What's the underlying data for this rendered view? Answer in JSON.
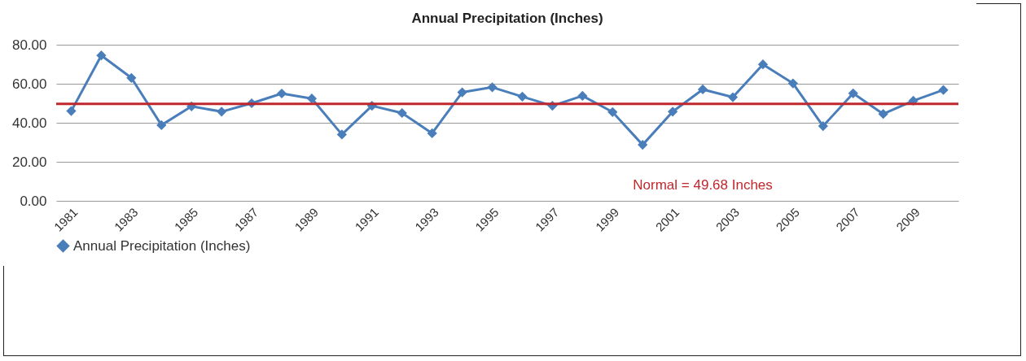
{
  "chart_data": {
    "type": "line",
    "title": "Annual Precipitation (Inches)",
    "categories": [
      "1981",
      null,
      "1983",
      null,
      "1985",
      null,
      "1987",
      null,
      "1989",
      null,
      "1991",
      null,
      "1993",
      null,
      "1995",
      null,
      "1997",
      null,
      "1999",
      null,
      "2001",
      null,
      "2003",
      null,
      "2005",
      null,
      "2007",
      null,
      "2009",
      null
    ],
    "series": [
      {
        "name": "Annual Precipitation (Inches)",
        "color": "#4a7ebb",
        "values": [
          46,
          74.5,
          63,
          38.8,
          48.4,
          45.7,
          50,
          55,
          52.4,
          34,
          48.7,
          45,
          34.6,
          55.6,
          58.2,
          53.4,
          48.7,
          53.8,
          45.5,
          28.7,
          45.7,
          57.1,
          53.1,
          69.9,
          60.2,
          38.3,
          55.1,
          44.5,
          51.3,
          56.8
        ]
      }
    ],
    "ylim": [
      0,
      80
    ],
    "yticks": [
      {
        "value": 0,
        "label": "0.00"
      },
      {
        "value": 20,
        "label": "20.00"
      },
      {
        "value": 40,
        "label": "40.00"
      },
      {
        "value": 60,
        "label": "60.00"
      },
      {
        "value": 80,
        "label": "80.00"
      }
    ],
    "ref_lines": [
      {
        "axis": "y",
        "value": 49.68,
        "label": "Normal = 49.68 Inches",
        "color": "#c0272d"
      }
    ],
    "grid": "y",
    "legend": "bottom",
    "marker": "diamond",
    "line_style": "solid"
  }
}
